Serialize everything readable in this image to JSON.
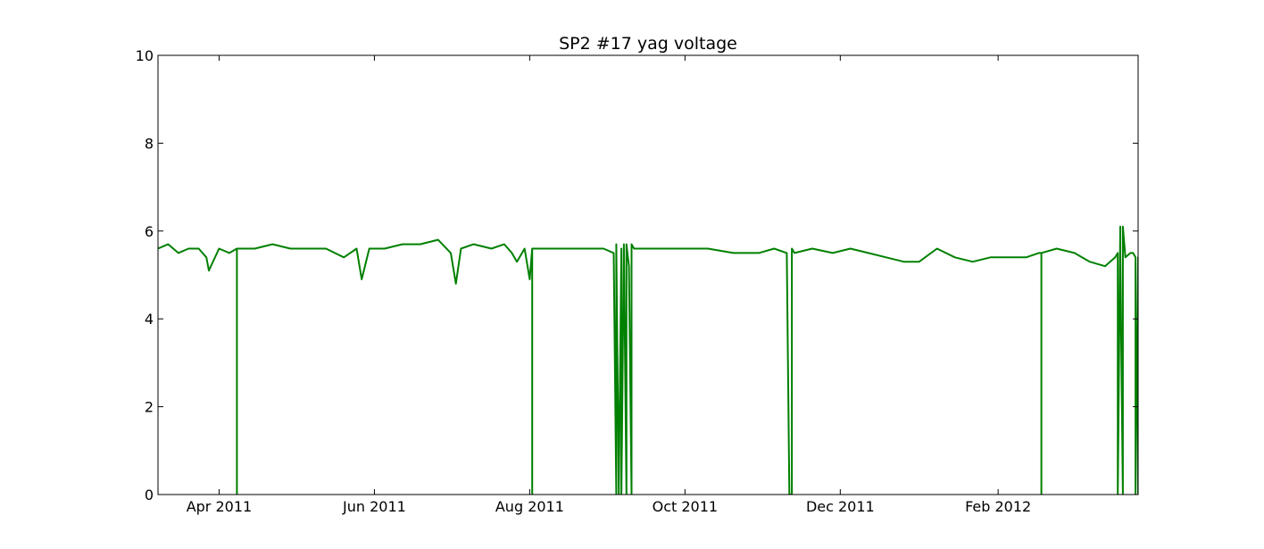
{
  "chart_data": {
    "type": "line",
    "title": "SP2 #17 yag voltage",
    "xlabel": "",
    "ylabel": "",
    "xlim": [
      "2011-03-08",
      "2012-03-27"
    ],
    "ylim": [
      0,
      10
    ],
    "yticks": [
      0,
      2,
      4,
      6,
      8,
      10
    ],
    "xticks": [
      {
        "date": "2011-04-01",
        "label": "Apr 2011"
      },
      {
        "date": "2011-06-01",
        "label": "Jun 2011"
      },
      {
        "date": "2011-08-01",
        "label": "Aug 2011"
      },
      {
        "date": "2011-10-01",
        "label": "Oct 2011"
      },
      {
        "date": "2011-12-01",
        "label": "Dec 2011"
      },
      {
        "date": "2012-02-01",
        "label": "Feb 2012"
      }
    ],
    "grid": false,
    "legend": "none",
    "line_color": "#008000",
    "series": [
      {
        "x": [
          "2011-03-08",
          "2011-03-12",
          "2011-03-16",
          "2011-03-20",
          "2011-03-24",
          "2011-03-27",
          "2011-03-28",
          "2011-04-01",
          "2011-04-05",
          "2011-04-08",
          "2011-04-08",
          "2011-04-08",
          "2011-04-15",
          "2011-04-22",
          "2011-04-29",
          "2011-05-06",
          "2011-05-13",
          "2011-05-20",
          "2011-05-25",
          "2011-05-27",
          "2011-05-30",
          "2011-06-05",
          "2011-06-12",
          "2011-06-19",
          "2011-06-26",
          "2011-07-01",
          "2011-07-03",
          "2011-07-05",
          "2011-07-10",
          "2011-07-17",
          "2011-07-22",
          "2011-07-25",
          "2011-07-27",
          "2011-07-30",
          "2011-08-01",
          "2011-08-02",
          "2011-08-02",
          "2011-08-02",
          "2011-08-10",
          "2011-08-20",
          "2011-08-30",
          "2011-09-03",
          "2011-09-04",
          "2011-09-04",
          "2011-09-05",
          "2011-09-06",
          "2011-09-06",
          "2011-09-07",
          "2011-09-08",
          "2011-09-08",
          "2011-09-09",
          "2011-09-10",
          "2011-09-10",
          "2011-09-11",
          "2011-09-20",
          "2011-10-01",
          "2011-10-10",
          "2011-10-20",
          "2011-10-30",
          "2011-11-05",
          "2011-11-10",
          "2011-11-11",
          "2011-11-12",
          "2011-11-12",
          "2011-11-13",
          "2011-11-20",
          "2011-11-28",
          "2011-12-05",
          "2011-12-12",
          "2011-12-19",
          "2011-12-26",
          "2012-01-01",
          "2012-01-08",
          "2012-01-15",
          "2012-01-22",
          "2012-01-29",
          "2012-02-05",
          "2012-02-12",
          "2012-02-17",
          "2012-02-18",
          "2012-02-18",
          "2012-02-18",
          "2012-02-24",
          "2012-03-02",
          "2012-03-08",
          "2012-03-14",
          "2012-03-18",
          "2012-03-19",
          "2012-03-19",
          "2012-03-20",
          "2012-03-20",
          "2012-03-21",
          "2012-03-21",
          "2012-03-22",
          "2012-03-24",
          "2012-03-25",
          "2012-03-26",
          "2012-03-26",
          "2012-03-27",
          "2012-03-27"
        ],
        "y": [
          5.6,
          5.7,
          5.5,
          5.6,
          5.6,
          5.4,
          5.1,
          5.6,
          5.5,
          5.6,
          0.0,
          5.6,
          5.6,
          5.7,
          5.6,
          5.6,
          5.6,
          5.4,
          5.6,
          4.9,
          5.6,
          5.6,
          5.7,
          5.7,
          5.8,
          5.5,
          4.8,
          5.6,
          5.7,
          5.6,
          5.7,
          5.5,
          5.3,
          5.6,
          4.9,
          5.6,
          0.0,
          5.6,
          5.6,
          5.6,
          5.6,
          5.5,
          0.0,
          5.7,
          0.0,
          5.6,
          0.0,
          5.7,
          0.0,
          5.7,
          5.2,
          0.0,
          5.7,
          5.6,
          5.6,
          5.6,
          5.6,
          5.5,
          5.5,
          5.6,
          5.5,
          0.0,
          0.0,
          5.6,
          5.5,
          5.6,
          5.5,
          5.6,
          5.5,
          5.4,
          5.3,
          5.3,
          5.6,
          5.4,
          5.3,
          5.4,
          5.4,
          5.4,
          5.5,
          5.5,
          0.0,
          5.5,
          5.6,
          5.5,
          5.3,
          5.2,
          5.4,
          5.5,
          0.0,
          6.1,
          5.5,
          0.0,
          6.1,
          5.4,
          5.5,
          5.5,
          5.4,
          0.0,
          5.4,
          0.0
        ]
      }
    ]
  }
}
